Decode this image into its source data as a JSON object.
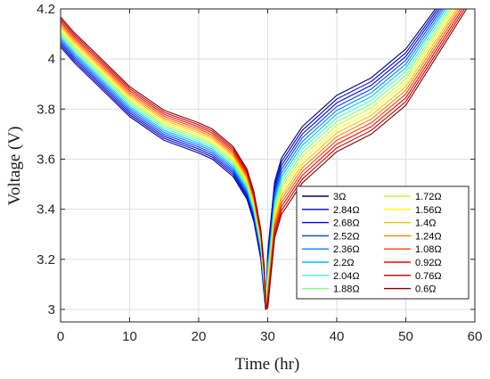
{
  "chart_data": {
    "type": "line",
    "title": "",
    "xlabel": "Time (hr)",
    "ylabel": "Voltage (V)",
    "xlim": [
      0,
      60
    ],
    "ylim": [
      2.95,
      4.2
    ],
    "xticks": [
      0,
      10,
      20,
      30,
      40,
      50,
      60
    ],
    "yticks": [
      3,
      3.2,
      3.4,
      3.6,
      3.8,
      4,
      4.2
    ],
    "grid": true,
    "legend_position": "bottom-right",
    "legend_columns": 2,
    "series": [
      {
        "name": "3Ω",
        "color": "#000080",
        "x": [
          0,
          2,
          5,
          10,
          15,
          20,
          22,
          25,
          27,
          28,
          29,
          29.5,
          29.7,
          30,
          31,
          32,
          35,
          38,
          40,
          45,
          50,
          54.3
        ],
        "y": [
          4.048,
          3.985,
          3.905,
          3.77,
          3.675,
          3.625,
          3.6,
          3.53,
          3.44,
          3.35,
          3.2,
          3.05,
          3.0,
          3.23,
          3.51,
          3.605,
          3.73,
          3.805,
          3.855,
          3.925,
          4.04,
          4.2
        ]
      },
      {
        "name": "2.84Ω",
        "color": "#0000c0",
        "x": [
          0,
          2,
          5,
          10,
          15,
          20,
          22,
          25,
          27,
          28,
          29,
          29.5,
          29.7,
          30,
          31,
          32,
          35,
          38,
          40,
          45,
          50,
          54.6
        ],
        "y": [
          4.056,
          3.993,
          3.913,
          3.778,
          3.683,
          3.633,
          3.608,
          3.538,
          3.448,
          3.358,
          3.208,
          3.058,
          3.0,
          3.215,
          3.495,
          3.59,
          3.715,
          3.79,
          3.84,
          3.91,
          4.025,
          4.2
        ]
      },
      {
        "name": "2.68Ω",
        "color": "#0000ff",
        "x": [
          0,
          2,
          5,
          10,
          15,
          20,
          22,
          25,
          27,
          28,
          29,
          29.5,
          29.7,
          30,
          31,
          32,
          35,
          38,
          40,
          45,
          50,
          54.9
        ],
        "y": [
          4.064,
          4.001,
          3.921,
          3.786,
          3.691,
          3.641,
          3.616,
          3.546,
          3.456,
          3.366,
          3.216,
          3.066,
          3.0,
          3.2,
          3.48,
          3.575,
          3.7,
          3.775,
          3.825,
          3.895,
          4.01,
          4.2
        ]
      },
      {
        "name": "2.52Ω",
        "color": "#0040ff",
        "x": [
          0,
          2,
          5,
          10,
          15,
          20,
          22,
          25,
          27,
          28,
          29,
          29.5,
          29.7,
          30,
          31,
          32,
          35,
          38,
          40,
          45,
          50,
          55.2
        ],
        "y": [
          4.072,
          4.009,
          3.929,
          3.794,
          3.699,
          3.649,
          3.624,
          3.554,
          3.464,
          3.374,
          3.224,
          3.074,
          3.0,
          3.185,
          3.465,
          3.56,
          3.685,
          3.76,
          3.81,
          3.88,
          3.995,
          4.2
        ]
      },
      {
        "name": "2.36Ω",
        "color": "#0080ff",
        "x": [
          0,
          2,
          5,
          10,
          15,
          20,
          22,
          25,
          27,
          28,
          29,
          29.5,
          29.7,
          30,
          31,
          32,
          35,
          38,
          40,
          45,
          50,
          55.5
        ],
        "y": [
          4.08,
          4.017,
          3.937,
          3.802,
          3.707,
          3.657,
          3.632,
          3.562,
          3.472,
          3.382,
          3.232,
          3.082,
          3.0,
          3.17,
          3.45,
          3.545,
          3.67,
          3.745,
          3.795,
          3.865,
          3.98,
          4.2
        ]
      },
      {
        "name": "2.2Ω",
        "color": "#00c0ff",
        "x": [
          0,
          2,
          5,
          10,
          15,
          20,
          22,
          25,
          27,
          28,
          29,
          29.5,
          29.7,
          30,
          31,
          32,
          35,
          38,
          40,
          45,
          50,
          55.8
        ],
        "y": [
          4.088,
          4.025,
          3.945,
          3.81,
          3.715,
          3.665,
          3.64,
          3.57,
          3.48,
          3.39,
          3.24,
          3.09,
          3.0,
          3.155,
          3.435,
          3.53,
          3.655,
          3.73,
          3.78,
          3.85,
          3.965,
          4.2
        ]
      },
      {
        "name": "2.04Ω",
        "color": "#40ffbf",
        "x": [
          0,
          2,
          5,
          10,
          15,
          20,
          22,
          25,
          27,
          28,
          29,
          29.5,
          29.7,
          30,
          31,
          32,
          35,
          38,
          40,
          45,
          50,
          56.1
        ],
        "y": [
          4.096,
          4.033,
          3.953,
          3.818,
          3.723,
          3.673,
          3.648,
          3.578,
          3.488,
          3.398,
          3.248,
          3.098,
          3.0,
          3.14,
          3.42,
          3.515,
          3.64,
          3.715,
          3.765,
          3.835,
          3.95,
          4.2
        ]
      },
      {
        "name": "1.88Ω",
        "color": "#80ff80",
        "x": [
          0,
          2,
          5,
          10,
          15,
          20,
          22,
          25,
          27,
          28,
          29,
          29.5,
          29.7,
          30,
          31,
          32,
          35,
          38,
          40,
          45,
          50,
          56.4
        ],
        "y": [
          4.104,
          4.041,
          3.961,
          3.826,
          3.731,
          3.681,
          3.656,
          3.586,
          3.496,
          3.406,
          3.256,
          3.106,
          3.0,
          3.125,
          3.405,
          3.5,
          3.625,
          3.7,
          3.75,
          3.82,
          3.935,
          4.2
        ]
      },
      {
        "name": "1.72Ω",
        "color": "#bfff40",
        "x": [
          0,
          2,
          5,
          10,
          15,
          20,
          22,
          25,
          27,
          28,
          29,
          29.5,
          29.7,
          30,
          31,
          32,
          35,
          38,
          40,
          45,
          50,
          56.7
        ],
        "y": [
          4.112,
          4.049,
          3.969,
          3.834,
          3.739,
          3.689,
          3.664,
          3.594,
          3.504,
          3.414,
          3.264,
          3.114,
          3.0,
          3.11,
          3.39,
          3.485,
          3.61,
          3.685,
          3.735,
          3.805,
          3.92,
          4.2
        ]
      },
      {
        "name": "1.56Ω",
        "color": "#ffff00",
        "x": [
          0,
          2,
          5,
          10,
          15,
          20,
          22,
          25,
          27,
          28,
          29,
          29.5,
          29.7,
          30,
          31,
          32,
          35,
          38,
          40,
          45,
          50,
          57.0
        ],
        "y": [
          4.12,
          4.057,
          3.977,
          3.842,
          3.747,
          3.697,
          3.672,
          3.602,
          3.512,
          3.422,
          3.272,
          3.122,
          3.0,
          3.095,
          3.375,
          3.47,
          3.595,
          3.67,
          3.72,
          3.79,
          3.905,
          4.2
        ]
      },
      {
        "name": "1.4Ω",
        "color": "#ffc000",
        "x": [
          0,
          2,
          5,
          10,
          15,
          20,
          22,
          25,
          27,
          28,
          29,
          29.5,
          29.7,
          30,
          31,
          32,
          35,
          38,
          40,
          45,
          50,
          57.3
        ],
        "y": [
          4.128,
          4.065,
          3.985,
          3.85,
          3.755,
          3.705,
          3.68,
          3.61,
          3.52,
          3.43,
          3.28,
          3.13,
          3.0,
          3.08,
          3.36,
          3.455,
          3.58,
          3.655,
          3.705,
          3.775,
          3.89,
          4.2
        ]
      },
      {
        "name": "1.24Ω",
        "color": "#ff8000",
        "x": [
          0,
          2,
          5,
          10,
          15,
          20,
          22,
          25,
          27,
          28,
          29,
          29.5,
          29.7,
          30,
          31,
          32,
          35,
          38,
          40,
          45,
          50,
          57.6
        ],
        "y": [
          4.136,
          4.073,
          3.993,
          3.858,
          3.763,
          3.713,
          3.688,
          3.618,
          3.528,
          3.438,
          3.288,
          3.138,
          3.0,
          3.065,
          3.345,
          3.44,
          3.565,
          3.64,
          3.69,
          3.76,
          3.875,
          4.2
        ]
      },
      {
        "name": "1.08Ω",
        "color": "#ff4000",
        "x": [
          0,
          2,
          5,
          10,
          15,
          20,
          22,
          25,
          27,
          28,
          29,
          29.5,
          29.7,
          30,
          31,
          32,
          35,
          38,
          40,
          45,
          50,
          57.9
        ],
        "y": [
          4.144,
          4.081,
          4.001,
          3.866,
          3.771,
          3.721,
          3.696,
          3.626,
          3.536,
          3.446,
          3.296,
          3.146,
          3.0,
          3.05,
          3.33,
          3.425,
          3.55,
          3.625,
          3.675,
          3.745,
          3.86,
          4.2
        ]
      },
      {
        "name": "0.92Ω",
        "color": "#ff0000",
        "x": [
          0,
          2,
          5,
          10,
          15,
          20,
          22,
          25,
          27,
          28,
          29,
          29.5,
          29.7,
          30,
          31,
          32,
          35,
          38,
          40,
          45,
          50,
          58.2
        ],
        "y": [
          4.152,
          4.089,
          4.009,
          3.874,
          3.779,
          3.729,
          3.704,
          3.634,
          3.544,
          3.454,
          3.304,
          3.154,
          3.0,
          3.035,
          3.315,
          3.41,
          3.535,
          3.61,
          3.66,
          3.73,
          3.845,
          4.2
        ]
      },
      {
        "name": "0.76Ω",
        "color": "#c00000",
        "x": [
          0,
          2,
          5,
          10,
          15,
          20,
          22,
          25,
          27,
          28,
          29,
          29.5,
          29.7,
          30,
          31,
          32,
          35,
          38,
          40,
          45,
          50,
          58.5
        ],
        "y": [
          4.16,
          4.097,
          4.017,
          3.882,
          3.787,
          3.737,
          3.712,
          3.642,
          3.552,
          3.462,
          3.312,
          3.162,
          3.0,
          3.02,
          3.3,
          3.395,
          3.52,
          3.595,
          3.645,
          3.715,
          3.83,
          4.2
        ]
      },
      {
        "name": "0.6Ω",
        "color": "#800000",
        "x": [
          0,
          2,
          5,
          10,
          15,
          20,
          22,
          25,
          27,
          28,
          29,
          29.5,
          29.7,
          30,
          31,
          32,
          35,
          38,
          40,
          45,
          50,
          58.8
        ],
        "y": [
          4.168,
          4.105,
          4.025,
          3.89,
          3.795,
          3.745,
          3.72,
          3.65,
          3.56,
          3.47,
          3.32,
          3.17,
          3.0,
          3.005,
          3.285,
          3.38,
          3.505,
          3.58,
          3.63,
          3.7,
          3.815,
          4.2
        ]
      }
    ]
  }
}
